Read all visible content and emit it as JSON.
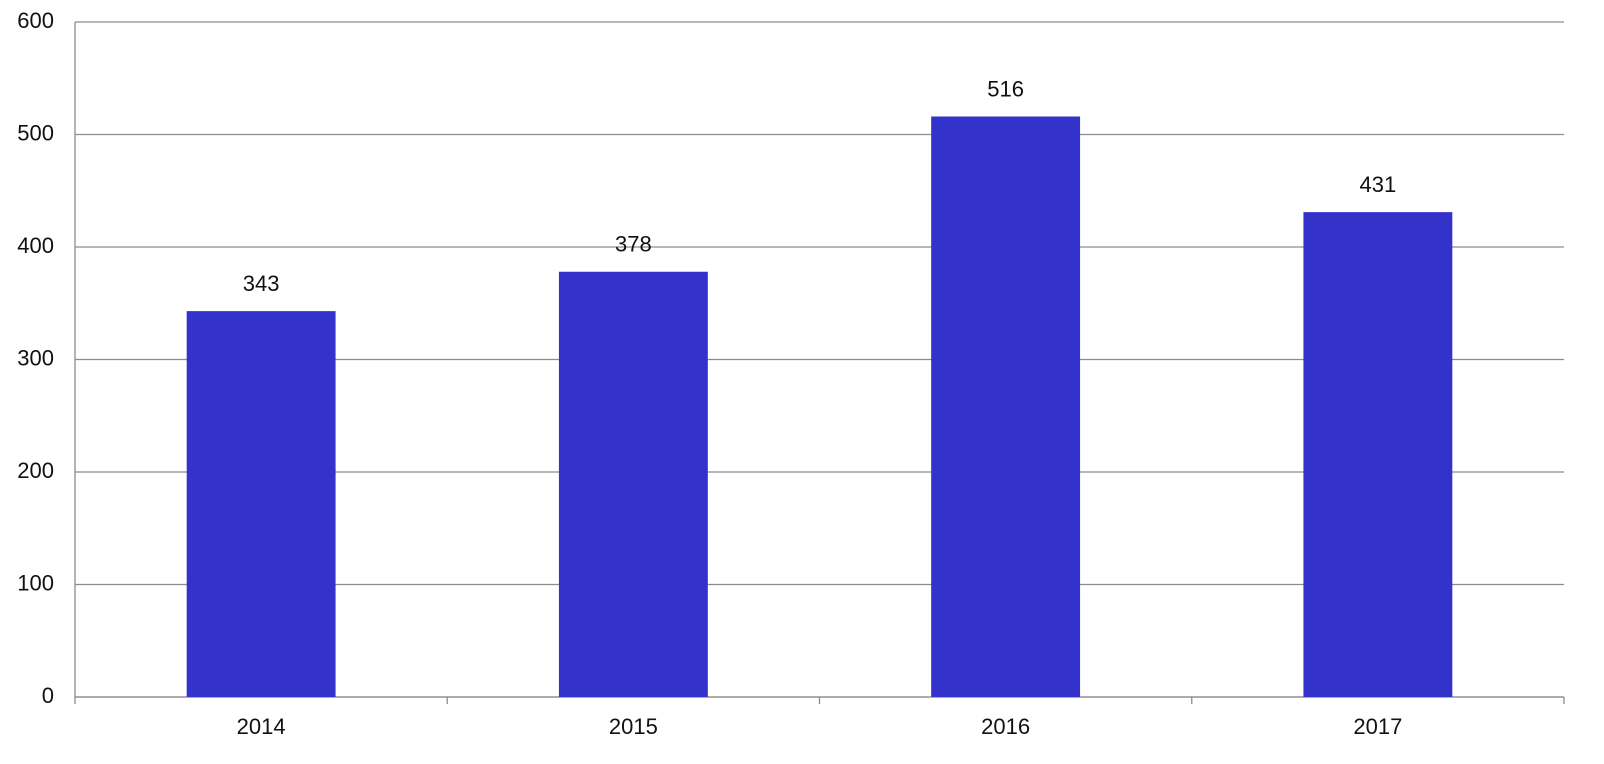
{
  "chart_data": {
    "type": "bar",
    "categories": [
      "2014",
      "2015",
      "2016",
      "2017"
    ],
    "values": [
      343,
      378,
      516,
      431
    ],
    "color": "#3333cc",
    "ylim": [
      0,
      600
    ],
    "yticks": [
      0,
      100,
      200,
      300,
      400,
      500,
      600
    ],
    "grid": true,
    "data_labels": true
  }
}
